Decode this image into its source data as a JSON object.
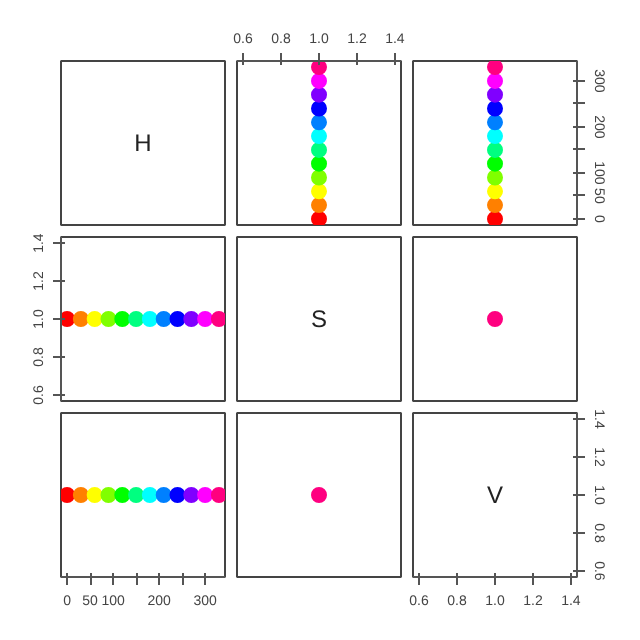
{
  "chart_data": [
    {
      "type": "other",
      "title": "H"
    },
    {
      "type": "scatter",
      "marker": "circle",
      "x": [
        1,
        1,
        1,
        1,
        1,
        1,
        1,
        1,
        1,
        1,
        1,
        1
      ],
      "values": [
        0,
        30,
        60,
        90,
        120,
        150,
        180,
        210,
        240,
        270,
        300,
        330
      ],
      "colors": [
        "#ff0000",
        "#ff8000",
        "#ffff00",
        "#80ff00",
        "#00ff00",
        "#00ff80",
        "#00ffff",
        "#0080ff",
        "#0000ff",
        "#8000ff",
        "#ff00ff",
        "#ff0080"
      ],
      "xlim": [
        0.568,
        1.432
      ],
      "xticks": [
        0.6,
        0.8,
        {
          "value": 1.0,
          "label": "1.0"
        },
        1.2,
        1.4
      ],
      "ylim": [
        -13.2,
        343.2
      ],
      "tick_labels": "x"
    },
    {
      "type": "scatter",
      "marker": "circle",
      "x": [
        1,
        1,
        1,
        1,
        1,
        1,
        1,
        1,
        1,
        1,
        1,
        1
      ],
      "values": [
        0,
        30,
        60,
        90,
        120,
        150,
        180,
        210,
        240,
        270,
        300,
        330
      ],
      "colors": [
        "#ff0000",
        "#ff8000",
        "#ffff00",
        "#80ff00",
        "#00ff00",
        "#00ff80",
        "#00ffff",
        "#0080ff",
        "#0000ff",
        "#8000ff",
        "#ff00ff",
        "#ff0080"
      ],
      "xlim": [
        0.568,
        1.432
      ],
      "ylim": [
        -13.2,
        343.2
      ],
      "yticks": [
        0,
        50,
        100,
        {
          "value": 150,
          "label": null
        },
        200,
        {
          "value": 250,
          "label": null
        },
        300
      ],
      "tick_labels": "y"
    },
    {
      "type": "scatter",
      "marker": "circle",
      "x": [
        0,
        30,
        60,
        90,
        120,
        150,
        180,
        210,
        240,
        270,
        300,
        330
      ],
      "values": [
        1,
        1,
        1,
        1,
        1,
        1,
        1,
        1,
        1,
        1,
        1,
        1
      ],
      "colors": [
        "#ff0000",
        "#ff8000",
        "#ffff00",
        "#80ff00",
        "#00ff00",
        "#00ff80",
        "#00ffff",
        "#0080ff",
        "#0000ff",
        "#8000ff",
        "#ff00ff",
        "#ff0080"
      ],
      "xlim": [
        -13.2,
        343.2
      ],
      "ylim": [
        0.568,
        1.432
      ],
      "yticks": [
        0.6,
        0.8,
        {
          "value": 1.0,
          "label": "1.0"
        },
        1.2,
        1.4
      ],
      "tick_labels": "y"
    },
    {
      "type": "other",
      "title": "S"
    },
    {
      "type": "scatter",
      "marker": "circle",
      "x": [
        1
      ],
      "values": [
        1
      ],
      "colors": [
        "#ff0080"
      ],
      "xlim": [
        0.568,
        1.432
      ],
      "ylim": [
        0.568,
        1.432
      ],
      "tick_labels": false
    },
    {
      "type": "scatter",
      "marker": "circle",
      "x": [
        0,
        30,
        60,
        90,
        120,
        150,
        180,
        210,
        240,
        270,
        300,
        330
      ],
      "values": [
        1,
        1,
        1,
        1,
        1,
        1,
        1,
        1,
        1,
        1,
        1,
        1
      ],
      "colors": [
        "#ff0000",
        "#ff8000",
        "#ffff00",
        "#80ff00",
        "#00ff00",
        "#00ff80",
        "#00ffff",
        "#0080ff",
        "#0000ff",
        "#8000ff",
        "#ff00ff",
        "#ff0080"
      ],
      "xlim": [
        -13.2,
        343.2
      ],
      "ylim": [
        0.568,
        1.432
      ],
      "xticks": [
        0,
        50,
        100,
        {
          "value": 150,
          "label": null
        },
        200,
        {
          "value": 250,
          "label": null
        },
        300
      ],
      "tick_labels": "x"
    },
    {
      "type": "scatter",
      "marker": "circle",
      "x": [
        1
      ],
      "values": [
        1
      ],
      "colors": [
        "#ff0080"
      ],
      "xlim": [
        0.568,
        1.432
      ],
      "ylim": [
        0.568,
        1.432
      ],
      "tick_labels": false
    },
    {
      "type": "scatter",
      "title": "V",
      "xlim": [
        0.568,
        1.432
      ],
      "ylim": [
        0.568,
        1.432
      ],
      "xticks": [
        0.6,
        0.8,
        {
          "value": 1.0,
          "label": "1.0"
        },
        1.2,
        1.4
      ],
      "yticks": [
        0.6,
        0.8,
        {
          "value": 1.0,
          "label": "1.0"
        },
        1.2,
        1.4
      ]
    }
  ]
}
